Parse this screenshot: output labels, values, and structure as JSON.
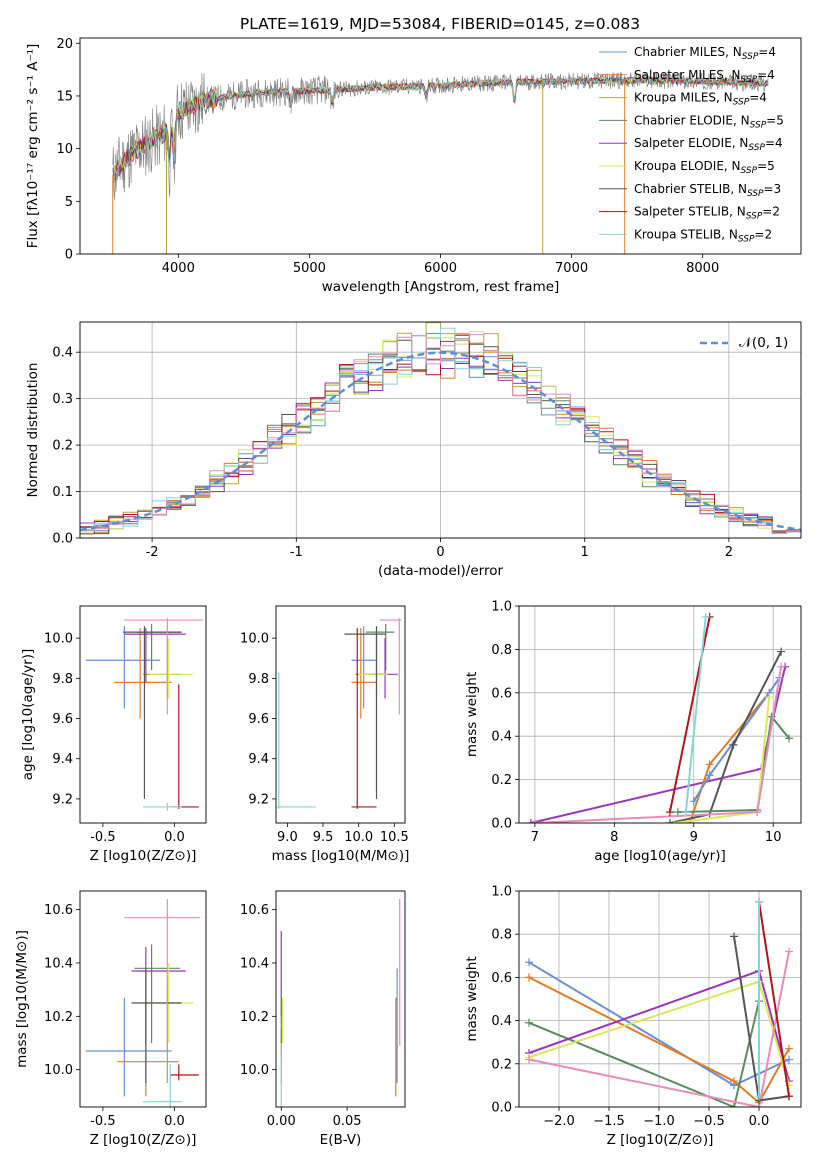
{
  "page": {
    "title": "PLATE=1619, MJD=53084, FIBERID=0145, z=0.083"
  },
  "palette": [
    "#6a8fd8",
    "#e07b26",
    "#b8a23c",
    "#5b8a63",
    "#9b35b8",
    "#d8e85a",
    "#555555",
    "#b0141a",
    "#86d3d8",
    "#e58cb9"
  ],
  "chart_data": [
    {
      "id": "spectrum",
      "type": "line",
      "xlabel": "wavelength [Angstrom, rest frame]",
      "ylabel": "Flux [fλ10⁻¹⁷ erg cm⁻² s⁻¹ A⁻¹]",
      "xlim": [
        3250,
        8750
      ],
      "ylim": [
        0,
        20.5
      ],
      "xticks": [
        4000,
        5000,
        6000,
        7000,
        8000
      ],
      "yticks": [
        0,
        5,
        10,
        15,
        20
      ],
      "grid": false,
      "legend_position": "right",
      "continuum": [
        [
          3500,
          7.5
        ],
        [
          3600,
          9
        ],
        [
          3700,
          10
        ],
        [
          3900,
          11.5
        ],
        [
          4000,
          13.5
        ],
        [
          4200,
          14.5
        ],
        [
          4400,
          15
        ],
        [
          4600,
          15.3
        ],
        [
          5000,
          15.5
        ],
        [
          5500,
          15.8
        ],
        [
          6000,
          16
        ],
        [
          6500,
          16.3
        ],
        [
          7000,
          16.4
        ],
        [
          7500,
          16.5
        ],
        [
          8000,
          16.4
        ],
        [
          8500,
          16.2
        ]
      ],
      "features": [
        [
          3933,
          3.8
        ],
        [
          3968,
          3.9
        ],
        [
          4861,
          1.5
        ],
        [
          5175,
          1.5
        ],
        [
          6563,
          2.0
        ],
        [
          5890,
          1.2
        ]
      ],
      "dropouts": [
        [
          3500,
          3560
        ],
        [
          3910,
          3935
        ],
        [
          6780,
          6800
        ],
        [
          7405,
          7420
        ]
      ],
      "dropout_colors": [
        "#e07b26",
        "#b8a23c",
        "#b8a23c",
        "#e07b26"
      ],
      "series": [
        {
          "name": "Chabrier MILES, N$_{SSP}$=4",
          "name_base": "Chabrier MILES, N",
          "sub": "SSP",
          "name_tail": "=4",
          "color": "#6a8fd8"
        },
        {
          "name": "Salpeter MILES, N$_{SSP}$=4",
          "name_base": "Salpeter MILES, N",
          "sub": "SSP",
          "name_tail": "=4",
          "color": "#e07b26"
        },
        {
          "name": "Kroupa MILES, N$_{SSP}$=4",
          "name_base": "Kroupa MILES, N",
          "sub": "SSP",
          "name_tail": "=4",
          "color": "#b8a23c"
        },
        {
          "name": "Chabrier ELODIE, N$_{SSP}$=5",
          "name_base": "Chabrier ELODIE, N",
          "sub": "SSP",
          "name_tail": "=5",
          "color": "#5b8a63"
        },
        {
          "name": "Salpeter ELODIE, N$_{SSP}$=4",
          "name_base": "Salpeter ELODIE, N",
          "sub": "SSP",
          "name_tail": "=4",
          "color": "#9b35b8"
        },
        {
          "name": "Kroupa ELODIE, N$_{SSP}$=5",
          "name_base": "Kroupa ELODIE, N",
          "sub": "SSP",
          "name_tail": "=5",
          "color": "#d8e85a"
        },
        {
          "name": "Chabrier STELIB, N$_{SSP}$=3",
          "name_base": "Chabrier STELIB, N",
          "sub": "SSP",
          "name_tail": "=3",
          "color": "#555555"
        },
        {
          "name": "Salpeter STELIB, N$_{SSP}$=2",
          "name_base": "Salpeter STELIB, N",
          "sub": "SSP",
          "name_tail": "=2",
          "color": "#b0141a"
        },
        {
          "name": "Kroupa STELIB, N$_{SSP}$=2",
          "name_base": "Kroupa STELIB, N",
          "sub": "SSP",
          "name_tail": "=2",
          "color": "#86d3d8"
        }
      ]
    },
    {
      "id": "residuals",
      "type": "histogram",
      "xlabel": "(data-model)/error",
      "ylabel": "Normed distribution",
      "xlim": [
        -2.5,
        2.5
      ],
      "ylim": [
        0,
        0.465
      ],
      "xticks": [
        -2,
        -1,
        0,
        1,
        2
      ],
      "yticks": [
        0.0,
        0.1,
        0.2,
        0.3,
        0.4
      ],
      "grid": true,
      "bin_width": 0.1,
      "legend": [
        {
          "label": "𝒩(0, 1)",
          "style": "dashed",
          "color": "#5b8fd6"
        }
      ]
    },
    {
      "id": "age_vs_Z",
      "type": "errorbar",
      "xlabel": "Z [log10(Z/Z⊙)]",
      "ylabel": "age  [log10(age/yr)]",
      "xlim": [
        -0.66,
        0.22
      ],
      "ylim": [
        9.08,
        10.16
      ],
      "xticks": [
        -0.5,
        0.0
      ],
      "yticks": [
        9.2,
        9.4,
        9.6,
        9.8,
        10.0
      ],
      "points": [
        {
          "x": -0.35,
          "xlo": -0.62,
          "xhi": -0.1,
          "y": 9.89,
          "ylo": 9.65,
          "yhi": 10.06,
          "color": "#6a8fd8"
        },
        {
          "x": -0.24,
          "xlo": -0.42,
          "xhi": -0.02,
          "y": 9.78,
          "ylo": 9.6,
          "yhi": 10.05,
          "color": "#e07b26"
        },
        {
          "x": -0.05,
          "xlo": -0.22,
          "xhi": 0.04,
          "y": 9.82,
          "ylo": 9.7,
          "yhi": 10.04,
          "color": "#b8a23c"
        },
        {
          "x": -0.16,
          "xlo": -0.27,
          "xhi": 0.04,
          "y": 10.03,
          "ylo": 9.84,
          "yhi": 10.07,
          "color": "#5b8a63"
        },
        {
          "x": -0.2,
          "xlo": -0.35,
          "xhi": 0.08,
          "y": 10.02,
          "ylo": 9.78,
          "yhi": 10.05,
          "color": "#9b35b8"
        },
        {
          "x": -0.04,
          "xlo": -0.17,
          "xhi": 0.13,
          "y": 9.82,
          "ylo": 9.7,
          "yhi": 10.0,
          "color": "#d8e85a"
        },
        {
          "x": -0.21,
          "xlo": -0.36,
          "xhi": 0.05,
          "y": 10.03,
          "ylo": 9.2,
          "yhi": 10.06,
          "color": "#555555"
        },
        {
          "x": 0.03,
          "xlo": -0.03,
          "xhi": 0.17,
          "y": 9.16,
          "ylo": 9.15,
          "yhi": 9.77,
          "color": "#b0141a"
        },
        {
          "x": -0.05,
          "xlo": -0.22,
          "xhi": 0.05,
          "y": 9.16,
          "ylo": 9.14,
          "yhi": 9.18,
          "color": "#86d3d8"
        },
        {
          "x": -0.05,
          "xlo": -0.35,
          "xhi": 0.2,
          "y": 10.09,
          "ylo": 9.62,
          "yhi": 10.1,
          "color": "#e58cb9"
        }
      ]
    },
    {
      "id": "age_vs_mass",
      "type": "errorbar",
      "xlabel": "mass [log10(M/M⊙)]",
      "ylabel": "",
      "xlim": [
        8.84,
        10.65
      ],
      "ylim": [
        9.08,
        10.16
      ],
      "xticks": [
        9.0,
        9.5,
        10.0,
        10.5
      ],
      "yticks": [
        9.2,
        9.4,
        9.6,
        9.8,
        10.0
      ],
      "points": [
        {
          "x": 10.07,
          "xlo": 9.9,
          "xhi": 10.25,
          "y": 9.89,
          "ylo": 9.65,
          "yhi": 10.06,
          "color": "#6a8fd8"
        },
        {
          "x": 10.03,
          "xlo": 9.9,
          "xhi": 10.25,
          "y": 9.78,
          "ylo": 9.6,
          "yhi": 10.05,
          "color": "#e07b26"
        },
        {
          "x": 10.25,
          "xlo": 9.95,
          "xhi": 10.35,
          "y": 9.82,
          "ylo": 9.7,
          "yhi": 10.04,
          "color": "#b8a23c"
        },
        {
          "x": 10.38,
          "xlo": 10.1,
          "xhi": 10.5,
          "y": 10.03,
          "ylo": 9.84,
          "yhi": 10.07,
          "color": "#5b8a63"
        },
        {
          "x": 10.37,
          "xlo": 10.1,
          "xhi": 10.55,
          "y": 9.82,
          "ylo": 9.7,
          "yhi": 10.0,
          "color": "#9b35b8"
        },
        {
          "x": 10.25,
          "xlo": 10.0,
          "xhi": 10.4,
          "y": 9.82,
          "ylo": 9.7,
          "yhi": 10.0,
          "color": "#d8e85a"
        },
        {
          "x": 10.25,
          "xlo": 9.8,
          "xhi": 10.38,
          "y": 10.02,
          "ylo": 9.2,
          "yhi": 10.06,
          "color": "#555555"
        },
        {
          "x": 9.98,
          "xlo": 9.9,
          "xhi": 10.25,
          "y": 9.16,
          "ylo": 9.15,
          "yhi": 10.05,
          "color": "#b0141a"
        },
        {
          "x": 8.88,
          "xlo": 8.84,
          "xhi": 9.4,
          "y": 9.16,
          "ylo": 9.15,
          "yhi": 9.83,
          "color": "#86d3d8"
        },
        {
          "x": 10.57,
          "xlo": 10.3,
          "xhi": 10.6,
          "y": 10.09,
          "ylo": 9.62,
          "yhi": 10.1,
          "color": "#e58cb9"
        }
      ]
    },
    {
      "id": "weight_vs_age",
      "type": "line",
      "xlabel": "age  [log10(age/yr)]",
      "ylabel": "mass weight",
      "xlim": [
        6.8,
        10.35
      ],
      "ylim": [
        0,
        1.0
      ],
      "xticks": [
        7,
        8,
        9,
        10
      ],
      "yticks": [
        0.0,
        0.2,
        0.4,
        0.6,
        0.8,
        1.0
      ],
      "grid": true,
      "series": [
        {
          "color": "#9b35b8",
          "points": [
            [
              6.95,
              0.0
            ],
            [
              9.85,
              0.25
            ],
            [
              10.15,
              0.72
            ]
          ]
        },
        {
          "color": "#e07b26",
          "points": [
            [
              8.95,
              0.0
            ],
            [
              9.2,
              0.27
            ],
            [
              9.95,
              0.6
            ]
          ]
        },
        {
          "color": "#6a8fd8",
          "points": [
            [
              9.0,
              0.1
            ],
            [
              9.2,
              0.22
            ],
            [
              9.95,
              0.6
            ],
            [
              10.08,
              0.67
            ]
          ]
        },
        {
          "color": "#555555",
          "points": [
            [
              8.7,
              0.0
            ],
            [
              9.2,
              0.04
            ],
            [
              9.5,
              0.36
            ],
            [
              10.1,
              0.79
            ]
          ]
        },
        {
          "color": "#5b8a63",
          "points": [
            [
              8.8,
              0.05
            ],
            [
              9.8,
              0.06
            ],
            [
              9.98,
              0.49
            ],
            [
              10.2,
              0.39
            ]
          ]
        },
        {
          "color": "#d8e85a",
          "points": [
            [
              8.75,
              0.0
            ],
            [
              9.8,
              0.05
            ],
            [
              9.95,
              0.58
            ]
          ]
        },
        {
          "color": "#e58cb9",
          "points": [
            [
              7.0,
              0.0
            ],
            [
              9.8,
              0.05
            ],
            [
              10.1,
              0.72
            ]
          ]
        },
        {
          "color": "#b0141a",
          "points": [
            [
              8.7,
              0.05
            ],
            [
              9.2,
              0.95
            ]
          ]
        },
        {
          "color": "#86d3d8",
          "points": [
            [
              8.9,
              0.05
            ],
            [
              9.15,
              0.95
            ]
          ]
        }
      ]
    },
    {
      "id": "mass_vs_Z",
      "type": "errorbar",
      "xlabel": "Z [log10(Z/Z⊙)]",
      "ylabel": "mass [log10(M/M⊙)]",
      "xlim": [
        -0.66,
        0.22
      ],
      "ylim": [
        9.86,
        10.67
      ],
      "xticks": [
        -0.5,
        0.0
      ],
      "yticks": [
        10.0,
        10.2,
        10.4,
        10.6
      ],
      "points": [
        {
          "x": -0.35,
          "xlo": -0.62,
          "xhi": -0.02,
          "y": 10.07,
          "ylo": 9.9,
          "yhi": 10.27,
          "color": "#6a8fd8"
        },
        {
          "x": -0.2,
          "xlo": -0.4,
          "xhi": 0.03,
          "y": 10.03,
          "ylo": 9.9,
          "yhi": 10.24,
          "color": "#e07b26"
        },
        {
          "x": -0.05,
          "xlo": -0.22,
          "xhi": 0.04,
          "y": 10.25,
          "ylo": 9.95,
          "yhi": 10.35,
          "color": "#b8a23c"
        },
        {
          "x": -0.16,
          "xlo": -0.28,
          "xhi": 0.04,
          "y": 10.38,
          "ylo": 10.1,
          "yhi": 10.47,
          "color": "#5b8a63"
        },
        {
          "x": -0.2,
          "xlo": -0.3,
          "xhi": 0.08,
          "y": 10.37,
          "ylo": 10.1,
          "yhi": 10.46,
          "color": "#9b35b8"
        },
        {
          "x": -0.04,
          "xlo": -0.2,
          "xhi": 0.13,
          "y": 10.25,
          "ylo": 10.1,
          "yhi": 10.4,
          "color": "#d8e85a"
        },
        {
          "x": -0.2,
          "xlo": -0.3,
          "xhi": 0.05,
          "y": 10.25,
          "ylo": 9.95,
          "yhi": 10.38,
          "color": "#555555"
        },
        {
          "x": 0.03,
          "xlo": -0.03,
          "xhi": 0.17,
          "y": 9.98,
          "ylo": 9.96,
          "yhi": 10.02,
          "color": "#b0141a"
        },
        {
          "x": -0.03,
          "xlo": -0.22,
          "xhi": 0.05,
          "y": 9.88,
          "ylo": 9.86,
          "yhi": 10.02,
          "color": "#86d3d8"
        },
        {
          "x": -0.05,
          "xlo": -0.35,
          "xhi": 0.18,
          "y": 10.57,
          "ylo": 10.09,
          "yhi": 10.64,
          "color": "#e58cb9"
        }
      ]
    },
    {
      "id": "mass_vs_ebv",
      "type": "errorbar",
      "xlabel": "E(B-V)",
      "ylabel": "",
      "xlim": [
        -0.004,
        0.094
      ],
      "ylim": [
        9.86,
        10.67
      ],
      "xticks": [
        0.0,
        0.05
      ],
      "yticks": [
        10.0,
        10.2,
        10.4,
        10.6
      ],
      "points": [
        {
          "x": 0.0,
          "ylo": 10.2,
          "yhi": 10.52,
          "color": "#9b35b8"
        },
        {
          "x": 0.001,
          "ylo": 10.1,
          "yhi": 10.27,
          "color": "#d8e85a"
        },
        {
          "x": 0.0,
          "ylo": 9.95,
          "yhi": 10.15,
          "color": "#b8a23c"
        },
        {
          "x": 0.0,
          "ylo": 9.86,
          "yhi": 10.05,
          "color": "#86d3d8"
        },
        {
          "x": 0.0,
          "ylo": 10.1,
          "yhi": 10.3,
          "color": "#5b8a63"
        },
        {
          "x": 0.087,
          "ylo": 9.9,
          "yhi": 10.27,
          "color": "#e07b26"
        },
        {
          "x": 0.088,
          "ylo": 9.95,
          "yhi": 10.38,
          "color": "#6a8fd8"
        },
        {
          "x": 0.09,
          "ylo": 10.09,
          "yhi": 10.64,
          "color": "#e58cb9"
        }
      ]
    },
    {
      "id": "weight_vs_Z",
      "type": "line",
      "xlabel": "Z [log10(Z/Z⊙)]",
      "ylabel": "mass weight",
      "xlim": [
        -2.4,
        0.42
      ],
      "ylim": [
        0,
        1.0
      ],
      "xticks": [
        -2.0,
        -1.5,
        -1.0,
        -0.5,
        0.0
      ],
      "yticks": [
        0.0,
        0.2,
        0.4,
        0.6,
        0.8,
        1.0
      ],
      "grid": true,
      "series": [
        {
          "color": "#6a8fd8",
          "points": [
            [
              -2.3,
              0.67
            ],
            [
              -0.25,
              0.1
            ],
            [
              0.3,
              0.22
            ]
          ]
        },
        {
          "color": "#e07b26",
          "points": [
            [
              -2.3,
              0.6
            ],
            [
              -0.25,
              0.12
            ],
            [
              0.0,
              0.02
            ],
            [
              0.3,
              0.27
            ]
          ]
        },
        {
          "color": "#5b8a63",
          "points": [
            [
              -2.3,
              0.39
            ],
            [
              -0.25,
              0.0
            ],
            [
              0.0,
              0.49
            ]
          ]
        },
        {
          "color": "#9b35b8",
          "points": [
            [
              -2.3,
              0.25
            ],
            [
              0.0,
              0.63
            ],
            [
              0.3,
              0.12
            ]
          ]
        },
        {
          "color": "#d8e85a",
          "points": [
            [
              -2.3,
              0.23
            ],
            [
              0.0,
              0.58
            ],
            [
              0.3,
              0.1
            ]
          ]
        },
        {
          "color": "#e58cb9",
          "points": [
            [
              -2.3,
              0.22
            ],
            [
              0.0,
              0.0
            ],
            [
              0.3,
              0.72
            ]
          ]
        },
        {
          "color": "#555555",
          "points": [
            [
              -0.25,
              0.79
            ],
            [
              0.0,
              0.03
            ],
            [
              0.3,
              0.05
            ]
          ]
        },
        {
          "color": "#b0141a",
          "points": [
            [
              0.0,
              0.95
            ],
            [
              0.3,
              0.05
            ]
          ]
        },
        {
          "color": "#86d3d8",
          "points": [
            [
              0.0,
              0.95
            ],
            [
              0.0,
              0.05
            ]
          ]
        }
      ]
    }
  ]
}
